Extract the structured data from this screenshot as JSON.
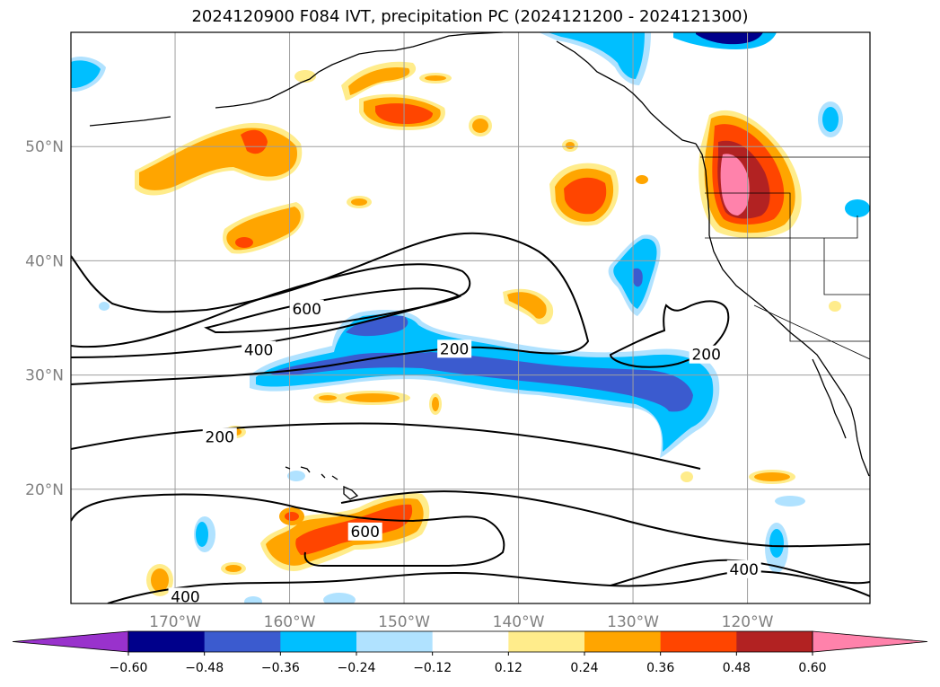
{
  "title": "2024120900 F084 IVT, precipitation PC (2024121200 - 2024121300)",
  "map": {
    "lat_labels": [
      {
        "lat": 50,
        "label": "50°N"
      },
      {
        "lat": 40,
        "label": "40°N"
      },
      {
        "lat": 30,
        "label": "30°N"
      },
      {
        "lat": 20,
        "label": "20°N"
      }
    ],
    "lon_labels": [
      {
        "lon": -170,
        "label": "170°W"
      },
      {
        "lon": -160,
        "label": "160°W"
      },
      {
        "lon": -150,
        "label": "150°W"
      },
      {
        "lon": -140,
        "label": "140°W"
      },
      {
        "lon": -130,
        "label": "130°W"
      },
      {
        "lon": -120,
        "label": "120°W"
      }
    ],
    "contour_labels": [
      {
        "text": "600",
        "lon": -158.5,
        "lat": 35.8
      },
      {
        "text": "400",
        "lon": -162.7,
        "lat": 32.2
      },
      {
        "text": "200",
        "lon": -145.6,
        "lat": 32.3
      },
      {
        "text": "200",
        "lon": -123.6,
        "lat": 31.8
      },
      {
        "text": "200",
        "lon": -166.1,
        "lat": 24.6
      },
      {
        "text": "600",
        "lon": -153.4,
        "lat": 16.3
      },
      {
        "text": "400",
        "lon": -120.3,
        "lat": 13.0
      },
      {
        "text": "400",
        "lon": -169.1,
        "lat": 10.6
      }
    ]
  },
  "colorbar": {
    "colors": [
      "#9932cc",
      "#00008b",
      "#3b5bcf",
      "#00bfff",
      "#b0e2ff",
      "#ffffff",
      "#ffec8b",
      "#ffa500",
      "#ff4500",
      "#b22222",
      "#ff82ab"
    ],
    "tick_labels": [
      "−0.60",
      "−0.48",
      "−0.36",
      "−0.24",
      "−0.12",
      "0.12",
      "0.24",
      "0.36",
      "0.48",
      "0.60"
    ]
  }
}
